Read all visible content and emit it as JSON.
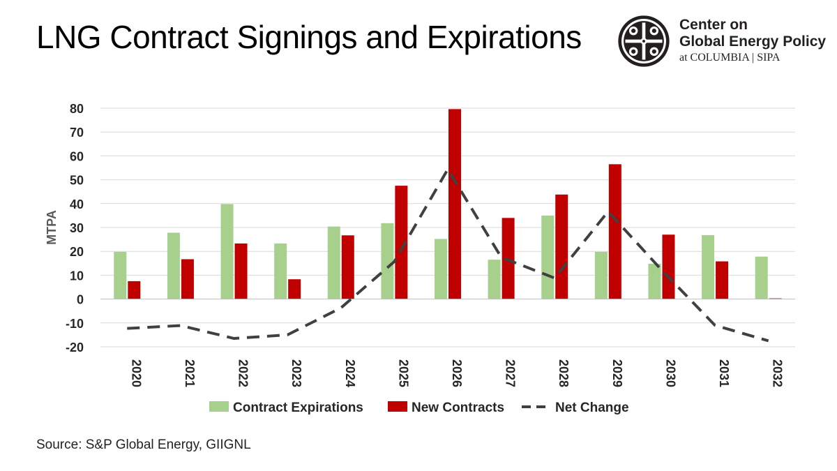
{
  "page": {
    "title": "LNG Contract Signings and Expirations",
    "source": "Source: S&P Global Energy, GIIGNL"
  },
  "logo": {
    "line1": "Center on",
    "line2": "Global Energy Policy",
    "line3": "at COLUMBIA | SIPA",
    "emblem_icon": "columbia-crown-emblem-icon"
  },
  "colors": {
    "expirations": "#a8d08d",
    "new_contracts": "#c00000",
    "net_change": "#404040",
    "grid": "#d9d9d9"
  },
  "chart_data": {
    "type": "bar",
    "title": "LNG Contract Signings and Expirations",
    "xlabel": "",
    "ylabel": "MTPA",
    "ylim": [
      -20,
      80
    ],
    "yticks": [
      -20,
      -10,
      0,
      10,
      20,
      30,
      40,
      50,
      60,
      70,
      80
    ],
    "grid": true,
    "legend_position": "bottom",
    "categories": [
      "2020",
      "2021",
      "2022",
      "2023",
      "2024",
      "2025",
      "2026",
      "2027",
      "2028",
      "2029",
      "2030",
      "2031",
      "2032"
    ],
    "series": [
      {
        "name": "Contract Expirations",
        "kind": "bar",
        "values": [
          19.8,
          27.8,
          39.8,
          23.3,
          30.4,
          31.8,
          25.2,
          16.5,
          35.0,
          19.8,
          14.8,
          26.8,
          17.8
        ]
      },
      {
        "name": "New Contracts",
        "kind": "bar",
        "values": [
          7.5,
          16.7,
          23.3,
          8.3,
          26.7,
          47.5,
          79.6,
          34.0,
          43.8,
          56.5,
          27.0,
          15.8,
          0.3
        ]
      },
      {
        "name": "Net Change",
        "kind": "line-dashed",
        "values": [
          -12.3,
          -11.1,
          -16.5,
          -15.0,
          -3.7,
          15.7,
          54.4,
          17.5,
          8.8,
          36.7,
          12.2,
          -11.0,
          -17.5
        ]
      }
    ]
  }
}
